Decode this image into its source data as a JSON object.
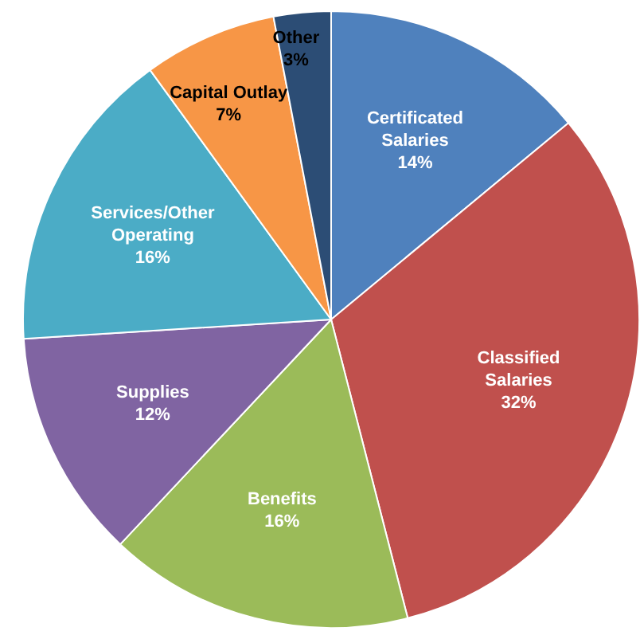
{
  "chart_data": {
    "type": "pie",
    "categories": [
      "Certificated Salaries",
      "Classified Salaries",
      "Benefits",
      "Supplies",
      "Services/Other Operating",
      "Capital Outlay",
      "Other"
    ],
    "values": [
      14,
      32,
      16,
      12,
      16,
      7,
      3
    ],
    "colors": [
      "#4f81bd",
      "#c0504d",
      "#9bbb59",
      "#8064a2",
      "#4bacc6",
      "#f79646",
      "#2c4d75"
    ],
    "value_labels": [
      "14%",
      "32%",
      "16%",
      "12%",
      "16%",
      "7%",
      "3%"
    ],
    "legend": false
  }
}
